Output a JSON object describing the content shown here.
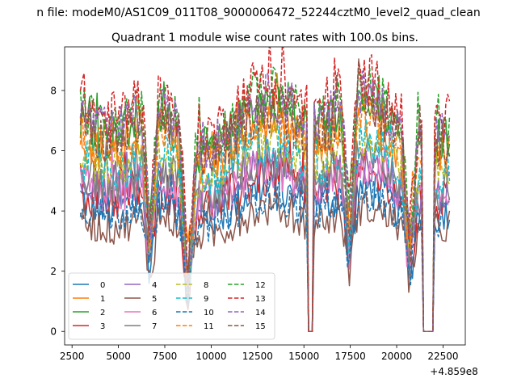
{
  "chart_data": {
    "type": "line",
    "suptitle": "n file: modeM0/AS1C09_011T08_9000006472_52244cztM0_level2_quad_clean",
    "title": "Quadrant 1 module wise count rates with 100.0s bins.",
    "xlabel": "",
    "ylabel": "",
    "x_offset_label": "+4.859e8",
    "xlim": [
      2100,
      23700
    ],
    "ylim": [
      -0.45,
      9.45
    ],
    "x_ticks": [
      2500,
      5000,
      7500,
      10000,
      12500,
      15000,
      17500,
      20000,
      22500
    ],
    "x_tick_labels": [
      "2500",
      "5000",
      "7500",
      "10000",
      "12500",
      "15000",
      "17500",
      "20000",
      "22500"
    ],
    "y_ticks": [
      0,
      2,
      4,
      6,
      8
    ],
    "y_tick_labels": [
      "0",
      "2",
      "4",
      "6",
      "8"
    ],
    "x_range": [
      2950,
      22850
    ],
    "bin_width": 100,
    "grid": false,
    "legend_position": "lower-left",
    "legend_columns": 4,
    "gaps": [
      {
        "x": [
          15250,
          15450
        ],
        "value": 0
      },
      {
        "x": [
          21450,
          21950
        ],
        "value": 0
      }
    ],
    "dips": [
      {
        "x": 6700,
        "depth": 0.55
      },
      {
        "x": 8750,
        "depth": 0.75
      },
      {
        "x": 17450,
        "depth": 0.5
      },
      {
        "x": 20700,
        "depth": 0.55
      }
    ],
    "series": [
      {
        "name": "0",
        "color": "#1f77b4",
        "dash": "solid",
        "level": 4.3,
        "noise": 0.7
      },
      {
        "name": "1",
        "color": "#ff7f0e",
        "dash": "solid",
        "level": 6.4,
        "noise": 0.8
      },
      {
        "name": "2",
        "color": "#2ca02c",
        "dash": "solid",
        "level": 6.9,
        "noise": 0.8
      },
      {
        "name": "3",
        "color": "#d62728",
        "dash": "solid",
        "level": 4.7,
        "noise": 0.8
      },
      {
        "name": "4",
        "color": "#9467bd",
        "dash": "solid",
        "level": 5.0,
        "noise": 0.7
      },
      {
        "name": "5",
        "color": "#8c564b",
        "dash": "solid",
        "level": 3.7,
        "noise": 0.6
      },
      {
        "name": "6",
        "color": "#e377c2",
        "dash": "solid",
        "level": 4.9,
        "noise": 0.7
      },
      {
        "name": "7",
        "color": "#7f7f7f",
        "dash": "solid",
        "level": 5.2,
        "noise": 0.7
      },
      {
        "name": "8",
        "color": "#bcbd22",
        "dash": "dashed",
        "level": 5.8,
        "noise": 0.7
      },
      {
        "name": "9",
        "color": "#17becf",
        "dash": "dashed",
        "level": 5.7,
        "noise": 0.8
      },
      {
        "name": "10",
        "color": "#1f77b4",
        "dash": "dashed",
        "level": 4.1,
        "noise": 0.6
      },
      {
        "name": "11",
        "color": "#ff7f0e",
        "dash": "dashed",
        "level": 6.5,
        "noise": 0.8
      },
      {
        "name": "12",
        "color": "#2ca02c",
        "dash": "dashed",
        "level": 7.3,
        "noise": 0.8
      },
      {
        "name": "13",
        "color": "#d62728",
        "dash": "dashed",
        "level": 7.6,
        "noise": 0.9
      },
      {
        "name": "14",
        "color": "#9467bd",
        "dash": "dashed",
        "level": 7.1,
        "noise": 0.8
      },
      {
        "name": "15",
        "color": "#8c564b",
        "dash": "dashed",
        "level": 6.7,
        "noise": 0.8
      }
    ]
  }
}
